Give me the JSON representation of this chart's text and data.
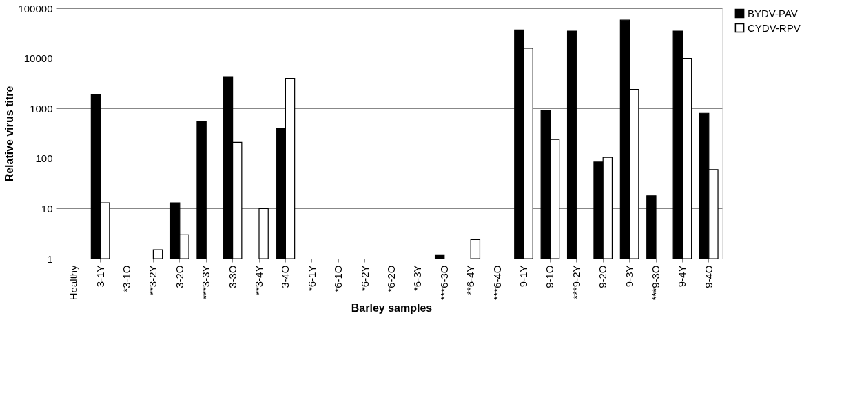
{
  "chart_data": {
    "type": "bar",
    "xlabel": "Barley samples",
    "ylabel": "Relative virus titre",
    "categories": [
      "Healthy",
      "3-1Y",
      "*3-1O",
      "**3-2Y",
      "3-2O",
      "***3-3Y",
      "3-3O",
      "**3-4Y",
      "3-4O",
      "*6-1Y",
      "*6-1O",
      "*6-2Y",
      "*6-2O",
      "*6-3Y",
      "***6-3O",
      "**6-4Y",
      "***6-4O",
      "9-1Y",
      "9-1O",
      "***9-2Y",
      "9-2O",
      "9-3Y",
      "***9-3O",
      "9-4Y",
      "9-4O"
    ],
    "series": [
      {
        "name": "BYDV-PAV",
        "color": "#000000",
        "values": [
          null,
          1900,
          null,
          null,
          13,
          550,
          4300,
          null,
          400,
          null,
          null,
          null,
          null,
          null,
          1.2,
          null,
          null,
          37000,
          900,
          35000,
          85,
          58000,
          18,
          35000,
          800
        ]
      },
      {
        "name": "CYDV-RPV",
        "color": "#ffffff",
        "values": [
          null,
          13,
          null,
          1.5,
          3,
          null,
          210,
          10,
          4000,
          null,
          null,
          null,
          null,
          null,
          null,
          2.4,
          null,
          16000,
          240,
          null,
          105,
          2400,
          null,
          10000,
          60
        ]
      }
    ],
    "log": "y",
    "ylim": [
      1,
      100000
    ],
    "yticks": [
      1,
      10,
      100,
      1000,
      10000,
      100000
    ],
    "grid": "y",
    "legend": "right"
  }
}
